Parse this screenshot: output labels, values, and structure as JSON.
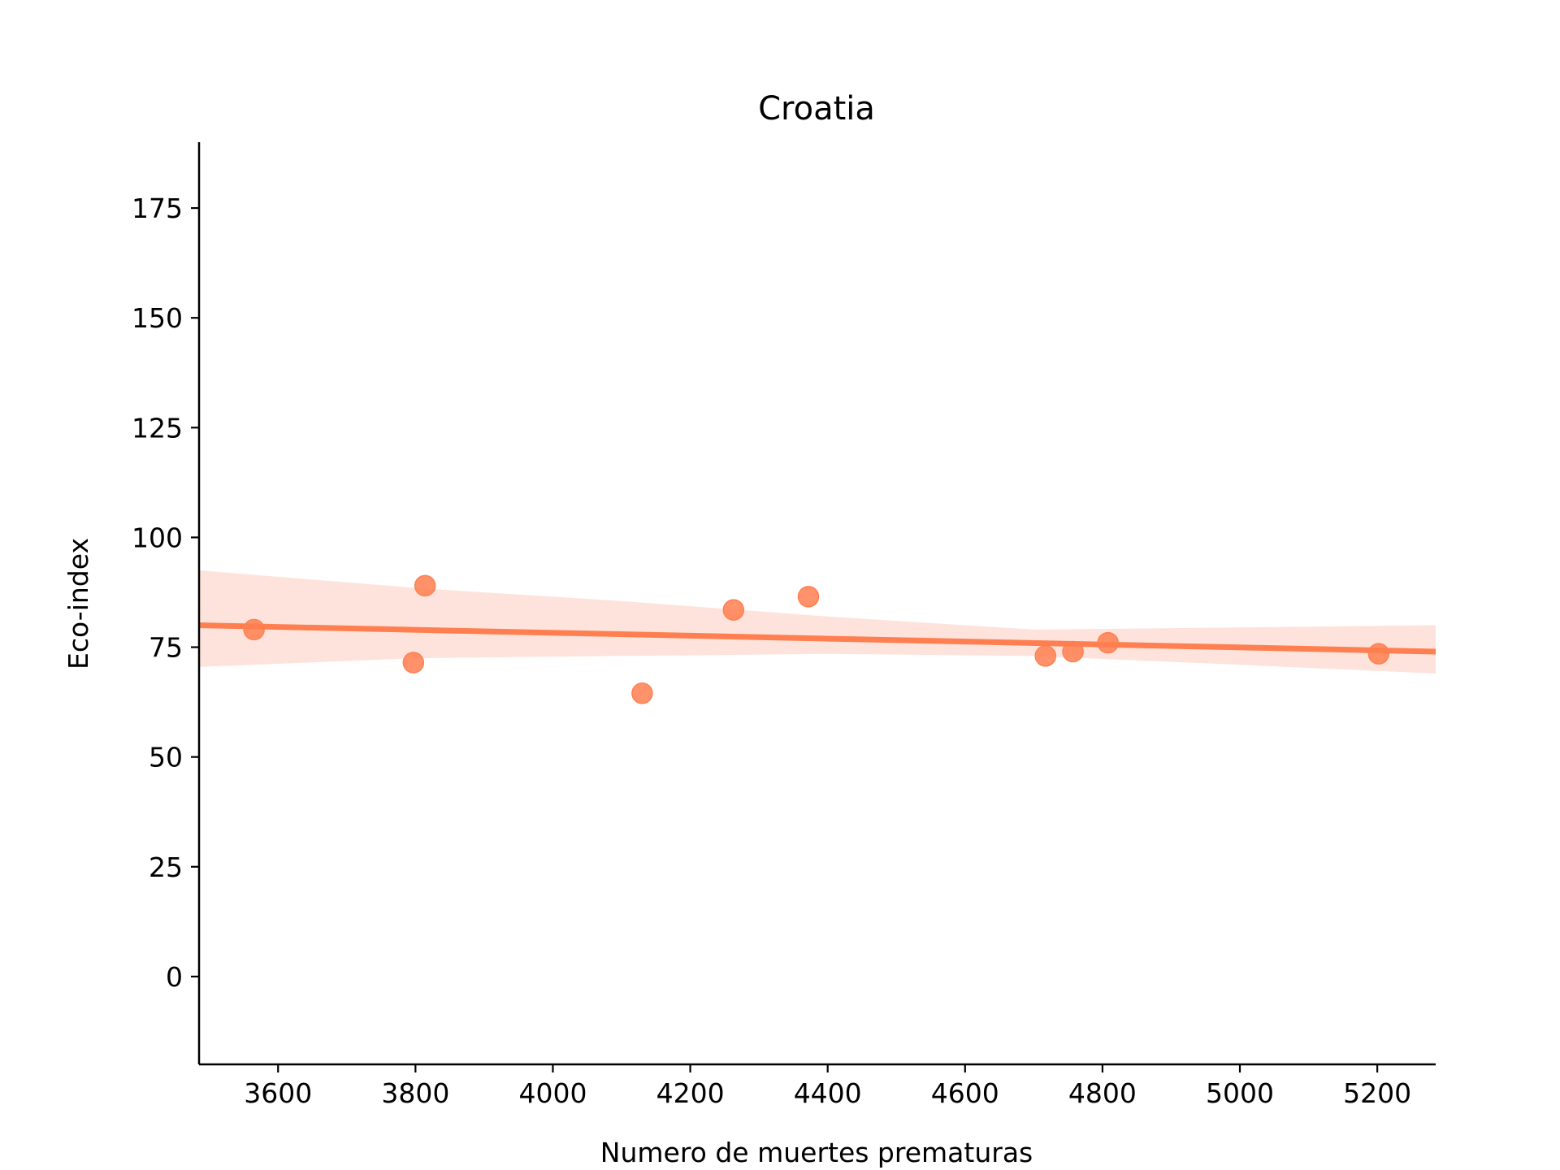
{
  "chart_data": {
    "type": "scatter",
    "title": "Croatia",
    "xlabel": "Numero de muertes prematuras",
    "ylabel": "Eco-index",
    "xlim": [
      3485,
      5285
    ],
    "ylim": [
      -20,
      190
    ],
    "xticks": [
      3600,
      3800,
      4000,
      4200,
      4400,
      4600,
      4800,
      5000,
      5200
    ],
    "yticks": [
      0,
      25,
      50,
      75,
      100,
      125,
      150,
      175
    ],
    "grid": false,
    "legend": "none",
    "points": [
      {
        "x": 3565,
        "y": 79
      },
      {
        "x": 3797,
        "y": 71.5
      },
      {
        "x": 3814,
        "y": 89
      },
      {
        "x": 4130,
        "y": 64.5
      },
      {
        "x": 4263,
        "y": 83.5
      },
      {
        "x": 4372,
        "y": 86.5
      },
      {
        "x": 4717,
        "y": 73
      },
      {
        "x": 4757,
        "y": 74
      },
      {
        "x": 4808,
        "y": 76
      },
      {
        "x": 5202,
        "y": 73.5
      }
    ],
    "regression_line": [
      {
        "x": 3485,
        "y": 80
      },
      {
        "x": 5285,
        "y": 74
      }
    ],
    "confidence_band": {
      "x": [
        3485,
        3800,
        4100,
        4400,
        4700,
        5000,
        5285
      ],
      "upper": [
        92.5,
        88.5,
        85.5,
        82,
        79,
        79.5,
        80
      ],
      "lower": [
        70.5,
        72.5,
        73,
        73.5,
        73,
        71,
        69
      ]
    },
    "colors": {
      "points": "#ff7f50",
      "line": "#ff7f50",
      "band": "#fde3dc"
    }
  }
}
